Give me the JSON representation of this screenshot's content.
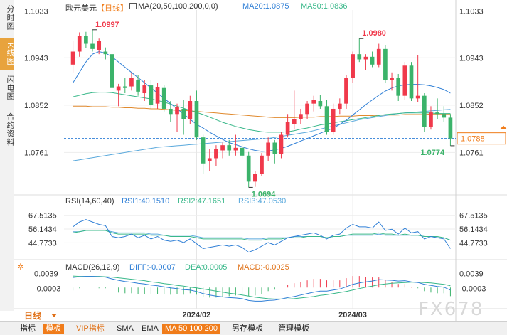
{
  "sidebar": {
    "tabs": [
      {
        "label": "分时图",
        "active": false
      },
      {
        "label": "K线图",
        "active": true
      },
      {
        "label": "闪电图",
        "active": false
      },
      {
        "label": "合约资料",
        "active": false
      }
    ]
  },
  "header": {
    "symbol": "欧元美元",
    "period_tag": "【日线】",
    "ma_label": "MA(20,50,100,200,0,0)",
    "ma20_label": "MA20:1.0875",
    "ma50_label": "MA50:1.0836"
  },
  "rsi": {
    "label": "RSI(14,60,40)",
    "rsi1": "RSI1:40.1510",
    "rsi2": "RSI2:47.1651",
    "rsi3": "RSI3:47.0530",
    "ticks": [
      "67.5135",
      "56.1434",
      "44.7733"
    ]
  },
  "macd": {
    "label": "MACD(26,12,9)",
    "diff": "DIFF:-0.0007",
    "dea": "DEA:0.0005",
    "macd": "MACD:-0.0025",
    "ticks": [
      "0.0039",
      "-0.0003"
    ]
  },
  "period_select": "日线",
  "bottom_bar": [
    "指标",
    "模板",
    "VIP指标",
    "SMA",
    "EMA",
    "MA 50 100 200",
    "另存模板",
    "管理模板"
  ],
  "watermark": "FX678",
  "colors": {
    "up": "#f0394b",
    "down": "#3bb36a",
    "ma20": "#2f7fd6",
    "ma50": "#39b88a",
    "ma100": "#5aa9dc",
    "ma200": "#e08a2e",
    "rsi1": "#2f7fd6",
    "rsi2": "#39b88a",
    "rsi3": "#5aa9dc",
    "price_tag": "#f07c1a"
  },
  "chart_data": {
    "type": "candlestick",
    "x_labels": [
      "2024/02",
      "2024/03"
    ],
    "price_ticks": [
      1.1033,
      1.0943,
      1.0852,
      1.0761
    ],
    "price_ylim": [
      1.0685,
      1.1035
    ],
    "annotations": {
      "high1": "1.0997",
      "high2": "1.0980",
      "low1": "1.0694",
      "last_low": "1.0774",
      "current": "1.0788"
    },
    "ohlc": [
      [
        1.093,
        1.0975,
        1.0915,
        1.0955
      ],
      [
        1.0955,
        1.0992,
        1.0945,
        1.0985
      ],
      [
        1.0985,
        1.0993,
        1.0962,
        1.097
      ],
      [
        1.097,
        1.0997,
        1.0955,
        1.096
      ],
      [
        1.0958,
        1.098,
        1.095,
        1.0975
      ],
      [
        1.0955,
        1.0963,
        1.094,
        1.095
      ],
      [
        1.095,
        1.0958,
        1.087,
        1.0885
      ],
      [
        1.088,
        1.0893,
        1.085,
        1.0888
      ],
      [
        1.0888,
        1.0905,
        1.0875,
        1.0885
      ],
      [
        1.0888,
        1.0915,
        1.088,
        1.0905
      ],
      [
        1.09,
        1.091,
        1.087,
        1.0878
      ],
      [
        1.0875,
        1.09,
        1.086,
        1.089
      ],
      [
        1.089,
        1.09,
        1.0845,
        1.0852
      ],
      [
        1.0855,
        1.0895,
        1.0845,
        1.0887
      ],
      [
        1.0885,
        1.089,
        1.084,
        1.0845
      ],
      [
        1.0845,
        1.086,
        1.082,
        1.0835
      ],
      [
        1.0835,
        1.0855,
        1.08,
        1.0848
      ],
      [
        1.0845,
        1.0862,
        1.0795,
        1.0825
      ],
      [
        1.0825,
        1.087,
        1.0815,
        1.086
      ],
      [
        1.086,
        1.088,
        1.0785,
        1.079
      ],
      [
        1.079,
        1.0795,
        1.072,
        1.074
      ],
      [
        1.0745,
        1.0768,
        1.0725,
        1.075
      ],
      [
        1.075,
        1.0775,
        1.0735,
        1.0768
      ],
      [
        1.0765,
        1.078,
        1.075,
        1.0775
      ],
      [
        1.0775,
        1.0785,
        1.0755,
        1.0765
      ],
      [
        1.0765,
        1.0795,
        1.0755,
        1.077
      ],
      [
        1.077,
        1.0778,
        1.075,
        1.0755
      ],
      [
        1.0755,
        1.0762,
        1.0694,
        1.0705
      ],
      [
        1.0705,
        1.0725,
        1.0695,
        1.072
      ],
      [
        1.072,
        1.076,
        1.0715,
        1.0755
      ],
      [
        1.0755,
        1.079,
        1.0745,
        1.078
      ],
      [
        1.078,
        1.0785,
        1.074,
        1.0758
      ],
      [
        1.0758,
        1.08,
        1.075,
        1.0795
      ],
      [
        1.0795,
        1.0835,
        1.079,
        1.082
      ],
      [
        1.0815,
        1.088,
        1.0805,
        1.0825
      ],
      [
        1.0825,
        1.0845,
        1.0815,
        1.0835
      ],
      [
        1.0835,
        1.086,
        1.0825,
        1.0855
      ],
      [
        1.0855,
        1.087,
        1.084,
        1.0862
      ],
      [
        1.086,
        1.0872,
        1.0845,
        1.085
      ],
      [
        1.085,
        1.0862,
        1.0795,
        1.08
      ],
      [
        1.08,
        1.0855,
        1.0795,
        1.0845
      ],
      [
        1.0845,
        1.0865,
        1.0835,
        1.0855
      ],
      [
        1.0855,
        1.091,
        1.0845,
        1.0905
      ],
      [
        1.0905,
        1.0955,
        1.0895,
        1.095
      ],
      [
        1.095,
        1.098,
        1.0935,
        1.094
      ],
      [
        1.094,
        1.095,
        1.092,
        1.0945
      ],
      [
        1.0945,
        1.0955,
        1.0925,
        1.093
      ],
      [
        1.093,
        1.097,
        1.0925,
        1.096
      ],
      [
        1.096,
        1.0968,
        1.0895,
        1.09
      ],
      [
        1.09,
        1.0915,
        1.088,
        1.0905
      ],
      [
        1.0905,
        1.0912,
        1.086,
        1.087
      ],
      [
        1.087,
        1.0935,
        1.0862,
        1.0928
      ],
      [
        1.0928,
        1.0935,
        1.086,
        1.0865
      ],
      [
        1.0865,
        1.0948,
        1.0858,
        1.087
      ],
      [
        1.087,
        1.0875,
        1.08,
        1.081
      ],
      [
        1.081,
        1.085,
        1.0805,
        1.0838
      ],
      [
        1.0838,
        1.0865,
        1.0825,
        1.0835
      ],
      [
        1.0835,
        1.085,
        1.082,
        1.0828
      ],
      [
        1.0828,
        1.0835,
        1.0774,
        1.0788
      ]
    ],
    "ma20": [
      1.0895,
      1.0915,
      1.0935,
      1.095,
      1.0955,
      1.0952,
      1.0945,
      1.0935,
      1.0925,
      1.0915,
      1.0905,
      1.0895,
      1.0885,
      1.0875,
      1.0865,
      1.0855,
      1.0845,
      1.0835,
      1.0825,
      1.0815,
      1.0808,
      1.08,
      1.0793,
      1.0786,
      1.078,
      1.0776,
      1.0772,
      1.0768,
      1.0765,
      1.0763,
      1.0764,
      1.0766,
      1.0769,
      1.0773,
      1.0778,
      1.0783,
      1.0788,
      1.0793,
      1.0798,
      1.0803,
      1.0808,
      1.0815,
      1.0823,
      1.0833,
      1.0843,
      1.0853,
      1.0862,
      1.0871,
      1.0879,
      1.0885,
      1.0889,
      1.0891,
      1.0892,
      1.0892,
      1.0891,
      1.0889,
      1.0886,
      1.0882,
      1.0875
    ],
    "ma50": [
      1.0868,
      1.0871,
      1.0874,
      1.0876,
      1.0877,
      1.0877,
      1.0876,
      1.0874,
      1.0872,
      1.087,
      1.0868,
      1.0866,
      1.0864,
      1.0861,
      1.0858,
      1.0854,
      1.085,
      1.0846,
      1.0842,
      1.0838,
      1.0834,
      1.0829,
      1.0824,
      1.0819,
      1.0815,
      1.0811,
      1.0808,
      1.0805,
      1.0803,
      1.0801,
      1.08,
      1.08,
      1.08,
      1.0801,
      1.0803,
      1.0806,
      1.0808,
      1.0811,
      1.0814,
      1.0816,
      1.0818,
      1.082,
      1.0822,
      1.0824,
      1.0826,
      1.0828,
      1.083,
      1.0832,
      1.0834,
      1.0835,
      1.0836,
      1.0837,
      1.0837,
      1.0837,
      1.0837,
      1.0837,
      1.0836,
      1.0836,
      1.0836
    ],
    "ma100": [
      1.0745,
      1.0747,
      1.0749,
      1.0751,
      1.0753,
      1.0755,
      1.0757,
      1.0759,
      1.0761,
      1.0763,
      1.0765,
      1.0767,
      1.0769,
      1.0771,
      1.0772,
      1.0773,
      1.0774,
      1.0775,
      1.0776,
      1.0777,
      1.0778,
      1.0779,
      1.078,
      1.0781,
      1.0782,
      1.0783,
      1.0784,
      1.0785,
      1.0786,
      1.0787,
      1.0788,
      1.079,
      1.0792,
      1.0794,
      1.0796,
      1.0798,
      1.08,
      1.0803,
      1.0806,
      1.0809,
      1.0812,
      1.0815,
      1.0818,
      1.0821,
      1.0824,
      1.0826,
      1.0828,
      1.083,
      1.0832,
      1.0834,
      1.0836,
      1.0837,
      1.0838,
      1.0839,
      1.084,
      1.0841,
      1.0842,
      1.0843,
      1.0844
    ],
    "ma200": [
      1.085,
      1.085,
      1.085,
      1.0849,
      1.0849,
      1.0849,
      1.0848,
      1.0848,
      1.0847,
      1.0847,
      1.0846,
      1.0846,
      1.0845,
      1.0845,
      1.0844,
      1.0843,
      1.0842,
      1.0842,
      1.0841,
      1.084,
      1.0839,
      1.0838,
      1.0837,
      1.0836,
      1.0835,
      1.0834,
      1.0833,
      1.0832,
      1.0831,
      1.083,
      1.0829,
      1.0828,
      1.0828,
      1.0828,
      1.0828,
      1.0829,
      1.0829,
      1.0829,
      1.083,
      1.083,
      1.083,
      1.0831,
      1.0831,
      1.0831,
      1.0832,
      1.0832,
      1.0832,
      1.0833,
      1.0833,
      1.0833,
      1.0833,
      1.0834,
      1.0834,
      1.0834,
      1.0834,
      1.0835,
      1.0835,
      1.0835,
      1.0835
    ],
    "rsi_ylim": [
      35,
      75
    ],
    "rsi1": [
      58,
      62,
      64,
      62,
      60,
      59,
      50,
      49,
      50,
      52,
      49,
      51,
      48,
      50,
      47,
      46,
      47,
      45,
      48,
      44,
      40,
      41,
      42,
      43,
      42,
      43,
      41,
      37,
      39,
      42,
      45,
      43,
      46,
      49,
      50,
      51,
      52,
      53,
      51,
      48,
      51,
      52,
      57,
      60,
      58,
      58,
      57,
      62,
      55,
      56,
      52,
      57,
      53,
      54,
      48,
      50,
      49,
      48,
      40
    ],
    "rsi2": [
      53,
      54,
      55,
      55,
      55,
      55,
      53,
      52,
      52,
      52,
      52,
      52,
      51,
      51,
      51,
      50,
      50,
      50,
      50,
      49,
      48,
      48,
      48,
      48,
      48,
      48,
      48,
      47,
      47,
      47,
      48,
      48,
      48,
      49,
      49,
      49,
      50,
      50,
      50,
      49,
      50,
      50,
      51,
      52,
      52,
      52,
      52,
      53,
      52,
      52,
      51,
      52,
      51,
      51,
      50,
      50,
      50,
      49,
      47
    ],
    "rsi3": [
      54,
      54,
      55,
      55,
      55,
      55,
      54,
      53,
      53,
      53,
      53,
      53,
      52,
      52,
      51,
      51,
      51,
      51,
      51,
      50,
      49,
      49,
      49,
      49,
      49,
      49,
      49,
      48,
      48,
      48,
      49,
      49,
      49,
      49,
      50,
      50,
      50,
      50,
      50,
      49,
      50,
      50,
      51,
      51,
      51,
      51,
      51,
      52,
      51,
      51,
      51,
      51,
      51,
      51,
      50,
      50,
      49,
      49,
      47
    ],
    "macd_ylim": [
      -0.0055,
      0.0048
    ],
    "macd_diff": [
      0.0028,
      0.003,
      0.0031,
      0.0031,
      0.003,
      0.0029,
      0.0024,
      0.002,
      0.0017,
      0.0015,
      0.0012,
      0.001,
      0.0007,
      0.0005,
      0.0002,
      -0.0001,
      -0.0003,
      -0.0006,
      -0.0007,
      -0.0011,
      -0.0017,
      -0.0021,
      -0.0024,
      -0.0026,
      -0.0028,
      -0.0029,
      -0.0031,
      -0.0036,
      -0.0038,
      -0.0038,
      -0.0036,
      -0.0035,
      -0.0032,
      -0.0028,
      -0.0025,
      -0.0021,
      -0.0017,
      -0.0013,
      -0.001,
      -0.001,
      -0.0007,
      -0.0004,
      0.0002,
      0.0009,
      0.0013,
      0.0016,
      0.0018,
      0.0022,
      0.0021,
      0.002,
      0.0018,
      0.0019,
      0.0016,
      0.0014,
      0.0009,
      0.0006,
      0.0003,
      0.0001,
      -0.0007
    ],
    "macd_dea": [
      0.0032,
      0.0031,
      0.0031,
      0.0031,
      0.0031,
      0.003,
      0.0029,
      0.0027,
      0.0025,
      0.0023,
      0.0021,
      0.0019,
      0.0016,
      0.0014,
      0.0011,
      0.0009,
      0.0006,
      0.0004,
      0.0001,
      -0.0001,
      -0.0004,
      -0.0007,
      -0.001,
      -0.0013,
      -0.0016,
      -0.0018,
      -0.0021,
      -0.0024,
      -0.0027,
      -0.0029,
      -0.0031,
      -0.0032,
      -0.0032,
      -0.0032,
      -0.0031,
      -0.0029,
      -0.0027,
      -0.0025,
      -0.0022,
      -0.002,
      -0.0017,
      -0.0014,
      -0.0011,
      -0.0007,
      -0.0003,
      0.0001,
      0.0004,
      0.0008,
      0.001,
      0.0012,
      0.0013,
      0.0014,
      0.0015,
      0.0015,
      0.0014,
      0.0013,
      0.0011,
      0.0009,
      0.0005
    ]
  }
}
